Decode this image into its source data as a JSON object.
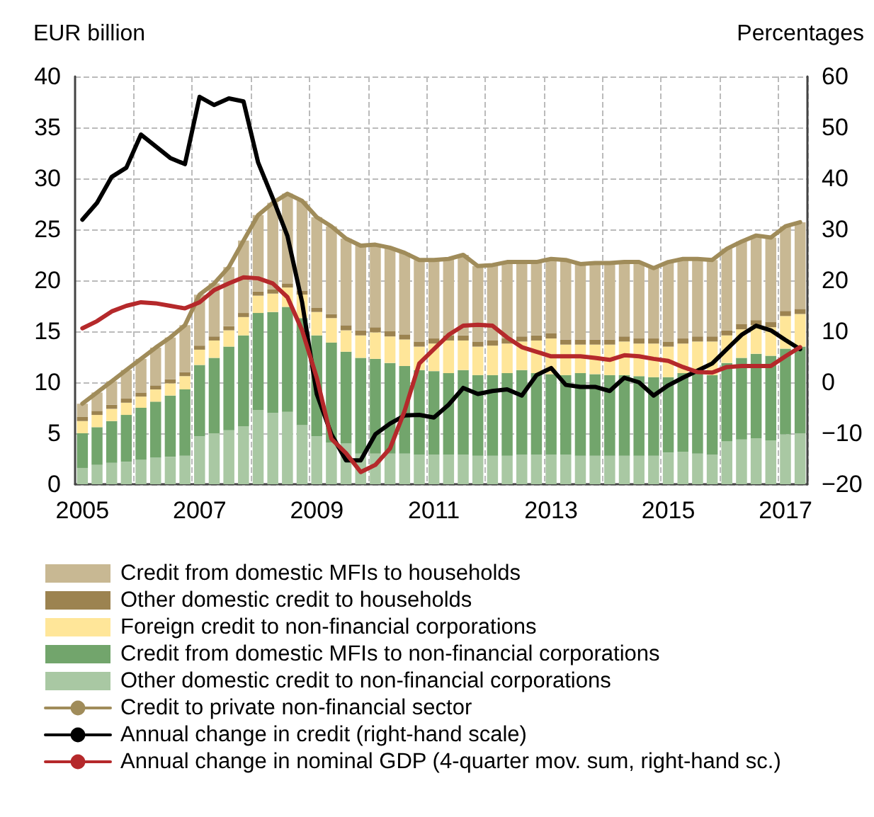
{
  "chart_data": {
    "type": "bar",
    "stacked": true,
    "ylabel": "EUR billion",
    "y2label": "Percentages",
    "categories": [
      "2005",
      null,
      null,
      null,
      null,
      null,
      null,
      null,
      "2007",
      null,
      null,
      null,
      null,
      null,
      null,
      null,
      "2009",
      null,
      null,
      null,
      null,
      null,
      null,
      null,
      "2011",
      null,
      null,
      null,
      null,
      null,
      null,
      null,
      "2013",
      null,
      null,
      null,
      null,
      null,
      null,
      null,
      "2015",
      null,
      null,
      null,
      null,
      null,
      null,
      null,
      "2017",
      null
    ],
    "ylim": [
      0,
      40
    ],
    "yticks": [
      0,
      5,
      10,
      15,
      20,
      25,
      30,
      35,
      40
    ],
    "y2lim": [
      -20,
      60
    ],
    "y2ticks": [
      -20,
      -10,
      0,
      10,
      20,
      30,
      40,
      50,
      60
    ],
    "grid": true,
    "legend": "bottom",
    "marker": "none",
    "line_style": "solid",
    "series": [
      {
        "name": "Other domestic credit to non-financial corporations",
        "color": "#a9c8a3",
        "values": [
          1.6,
          1.9,
          2.1,
          2.2,
          2.4,
          2.6,
          2.7,
          2.8,
          4.7,
          5.0,
          5.3,
          5.7,
          7.3,
          7.0,
          7.1,
          5.8,
          4.7,
          4.1,
          4.0,
          3.0,
          3.0,
          3.0,
          3.0,
          2.9,
          2.9,
          2.9,
          2.9,
          2.8,
          2.8,
          2.8,
          2.9,
          2.9,
          2.9,
          2.9,
          2.8,
          2.8,
          2.8,
          2.8,
          2.8,
          2.8,
          3.1,
          3.2,
          3.0,
          2.9,
          4.2,
          4.4,
          4.5,
          4.3,
          4.9,
          5.0
        ]
      },
      {
        "name": "Credit from domestic MFIs to non-financial corporations",
        "color": "#72a56c",
        "values": [
          3.4,
          3.7,
          4.1,
          4.6,
          5.1,
          5.5,
          6.0,
          6.5,
          7.0,
          7.4,
          8.2,
          8.9,
          9.5,
          9.9,
          10.3,
          10.5,
          9.9,
          9.8,
          9.0,
          9.4,
          9.3,
          8.9,
          8.6,
          8.3,
          8.2,
          8.0,
          8.3,
          7.9,
          7.9,
          8.1,
          8.3,
          8.0,
          7.9,
          7.8,
          8.1,
          8.0,
          7.9,
          7.9,
          7.8,
          7.7,
          7.4,
          7.7,
          8.2,
          7.8,
          7.7,
          8.0,
          8.3,
          8.3,
          8.4,
          8.5
        ]
      },
      {
        "name": "Foreign credit to non-financial corporations",
        "color": "#ffe699",
        "values": [
          1.2,
          1.2,
          1.2,
          1.2,
          1.1,
          1.2,
          1.2,
          1.3,
          1.5,
          1.7,
          1.6,
          1.8,
          1.7,
          1.8,
          1.9,
          2.3,
          2.3,
          2.4,
          2.1,
          2.2,
          2.6,
          2.6,
          2.6,
          2.3,
          2.7,
          3.2,
          2.9,
          2.8,
          2.9,
          2.9,
          2.8,
          3.2,
          3.5,
          3.0,
          2.8,
          2.9,
          3.0,
          3.3,
          3.2,
          3.3,
          3.0,
          2.9,
          2.8,
          3.3,
          2.7,
          2.8,
          2.8,
          2.8,
          3.2,
          3.2
        ]
      },
      {
        "name": "Other domestic credit to households",
        "color": "#9c8350",
        "values": [
          0.4,
          0.4,
          0.4,
          0.4,
          0.4,
          0.4,
          0.4,
          0.4,
          0.4,
          0.4,
          0.4,
          0.4,
          0.4,
          0.4,
          0.4,
          0.4,
          0.4,
          0.4,
          0.5,
          0.5,
          0.5,
          0.5,
          0.5,
          0.5,
          0.5,
          0.5,
          0.5,
          0.5,
          0.5,
          0.5,
          0.5,
          0.5,
          0.5,
          0.5,
          0.5,
          0.5,
          0.5,
          0.5,
          0.5,
          0.5,
          0.5,
          0.5,
          0.5,
          0.5,
          0.5,
          0.5,
          0.5,
          0.5,
          0.5,
          0.5
        ]
      },
      {
        "name": "Credit from domestic MFIs to households",
        "color": "#c8b893",
        "values": [
          1.3,
          1.8,
          2.3,
          2.8,
          3.3,
          3.7,
          4.1,
          4.6,
          5.0,
          5.2,
          5.8,
          7.1,
          7.5,
          8.5,
          8.8,
          8.8,
          8.9,
          8.6,
          8.5,
          8.3,
          8.1,
          8.2,
          8.0,
          8.0,
          7.7,
          7.5,
          7.9,
          7.4,
          7.4,
          7.5,
          7.3,
          7.2,
          7.3,
          7.8,
          7.4,
          7.5,
          7.5,
          7.3,
          7.5,
          6.9,
          7.8,
          7.8,
          7.6,
          7.5,
          8.0,
          8.1,
          8.3,
          8.3,
          8.3,
          8.5
        ]
      },
      {
        "name": "Credit to private non-financial sector",
        "type": "line",
        "color": "#a08c5a",
        "values": [
          7.9,
          9.0,
          10.1,
          11.2,
          12.3,
          13.4,
          14.4,
          15.6,
          18.6,
          19.7,
          21.3,
          23.9,
          26.4,
          27.6,
          28.5,
          27.8,
          26.2,
          25.3,
          24.1,
          23.4,
          23.5,
          23.2,
          22.7,
          22.0,
          22.0,
          22.1,
          22.5,
          21.4,
          21.5,
          21.8,
          21.8,
          21.8,
          22.1,
          22.0,
          21.6,
          21.7,
          21.7,
          21.8,
          21.8,
          21.2,
          21.8,
          22.1,
          22.1,
          22.0,
          23.1,
          23.8,
          24.4,
          24.2,
          25.3,
          25.7
        ]
      },
      {
        "name": "Annual change in credit (right-hand scale)",
        "type": "line",
        "axis": "y2",
        "color": "#000000",
        "values": [
          31.9,
          35.2,
          40.3,
          42.1,
          48.6,
          46.3,
          44.0,
          42.8,
          56.0,
          54.4,
          55.7,
          55.1,
          43.1,
          36.1,
          28.7,
          15.7,
          -2.3,
          -10.2,
          -15.3,
          -15.3,
          -10.2,
          -8.1,
          -6.5,
          -6.4,
          -6.9,
          -4.4,
          -1.1,
          -2.3,
          -1.7,
          -1.4,
          -2.6,
          1.4,
          2.8,
          -0.5,
          -0.9,
          -0.9,
          -1.7,
          0.9,
          0.0,
          -2.6,
          -0.6,
          0.9,
          2.3,
          3.7,
          6.5,
          9.3,
          11.1,
          10.2,
          8.3,
          6.5
        ]
      },
      {
        "name": "Annual change in nominal GDP (4-quarter mov. sum, right-hand sc.)",
        "type": "line",
        "axis": "y2",
        "color": "#b5292b",
        "values": [
          10.6,
          12.0,
          13.9,
          15.0,
          15.7,
          15.5,
          15.0,
          14.5,
          15.7,
          18.1,
          19.4,
          20.6,
          20.4,
          19.4,
          16.7,
          10.2,
          0.9,
          -11.1,
          -13.9,
          -17.6,
          -16.2,
          -13.0,
          -5.6,
          3.7,
          6.5,
          9.3,
          11.1,
          11.3,
          11.1,
          8.8,
          6.9,
          6.0,
          5.1,
          5.1,
          5.1,
          4.8,
          4.4,
          5.3,
          5.1,
          4.6,
          4.2,
          3.0,
          2.0,
          1.9,
          3.0,
          3.2,
          3.2,
          3.2,
          5.1,
          6.9
        ]
      }
    ]
  }
}
